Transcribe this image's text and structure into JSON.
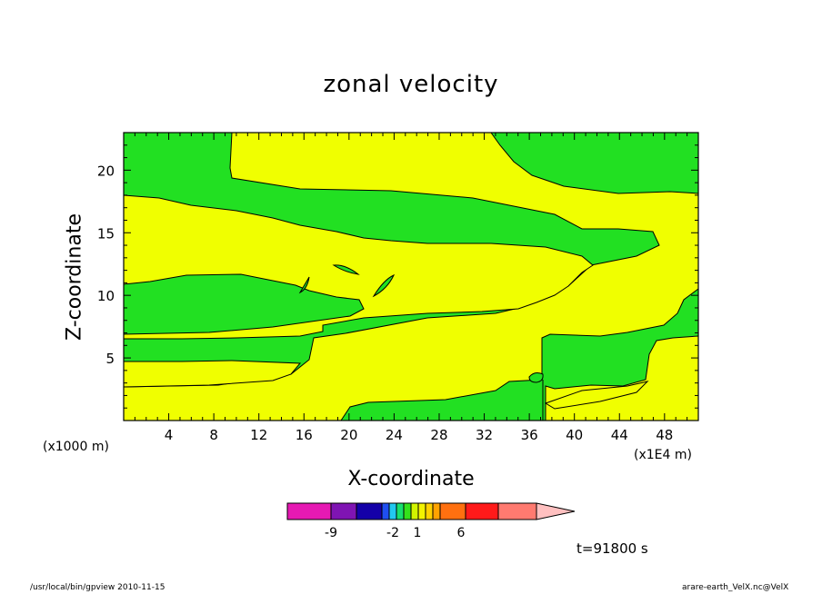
{
  "chart_data": {
    "type": "heatmap",
    "title": "zonal velocity",
    "xlabel": "X-coordinate",
    "ylabel": "Z-coordinate",
    "x_unit_note": "(x1000 m)",
    "x_tick_unit_note": "(x1E4 m)",
    "x_ticks": [
      4,
      8,
      12,
      16,
      20,
      24,
      28,
      32,
      36,
      40,
      44,
      48
    ],
    "y_ticks": [
      5,
      10,
      15,
      20
    ],
    "xlim": [
      0,
      51
    ],
    "ylim": [
      0,
      23
    ],
    "time_label": "t=91800 s",
    "colorbar": {
      "bins": [
        {
          "color": "#e619b3"
        },
        {
          "color": "#7f14b3"
        },
        {
          "color": "#1400a8"
        },
        {
          "color": "#1f4ff0"
        },
        {
          "color": "#22c8f0"
        },
        {
          "color": "#18e06e"
        },
        {
          "color": "#34e21b"
        },
        {
          "color": "#d2f500"
        },
        {
          "color": "#f3f300"
        },
        {
          "color": "#ffd200"
        },
        {
          "color": "#ffa300"
        },
        {
          "color": "#ff7010"
        },
        {
          "color": "#ff1a1a"
        },
        {
          "color": "#ff7a70"
        },
        {
          "color": "#ffc0c0"
        }
      ],
      "labels": [
        "-9",
        "-2",
        "1",
        "6"
      ]
    },
    "field_colors": {
      "green": "#22e022",
      "yellow": "#f0ff00"
    }
  },
  "footer": {
    "left": "/usr/local/bin/gpview   2010-11-15",
    "right": "arare-earth_VelX.nc@VelX"
  }
}
